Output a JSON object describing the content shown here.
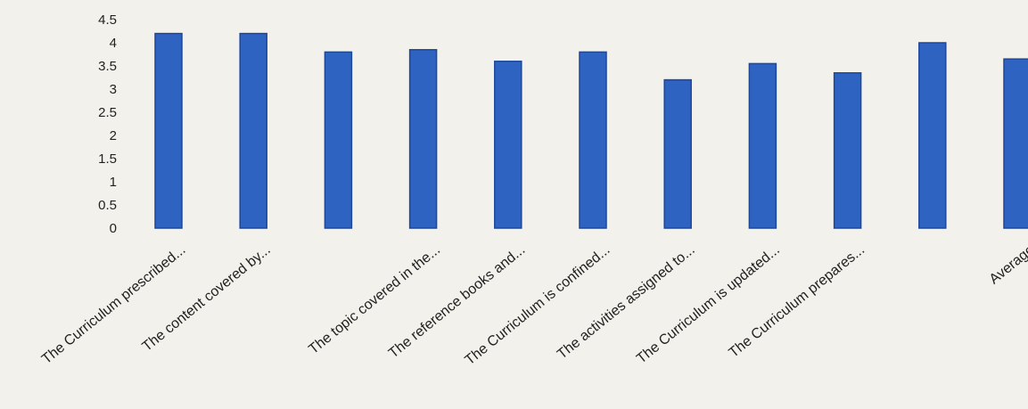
{
  "chart_data": {
    "type": "bar",
    "categories": [
      "The Curriculum prescribed...",
      "The content covered by...",
      "",
      "The topic covered in the...",
      "The reference books and...",
      "The Curriculum is confined...",
      "The activities assigned to...",
      "The Curriculum is updated...",
      "The Curriculum prepares...",
      "",
      "Average"
    ],
    "values": [
      4.2,
      4.2,
      3.8,
      3.85,
      3.6,
      3.8,
      3.2,
      3.55,
      3.35,
      4.0,
      3.65
    ],
    "ylim": [
      0,
      4.5
    ],
    "yticks": [
      "0",
      "0.5",
      "1",
      "1.5",
      "2",
      "2.5",
      "3",
      "3.5",
      "4",
      "4.5"
    ],
    "grid": false,
    "colors": {
      "bar": "#2f63c2",
      "bar_edge": "#1d4799",
      "text": "#222222"
    }
  }
}
